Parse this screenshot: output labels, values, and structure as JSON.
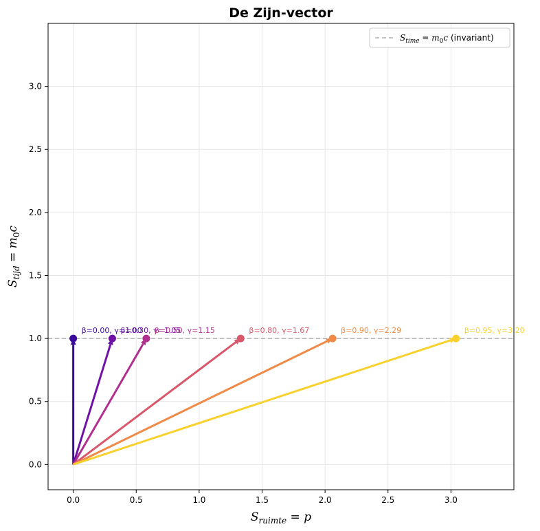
{
  "chart_data": {
    "type": "vector",
    "title": "De Zijn-vector",
    "xlabel": "S_ruimte = p",
    "ylabel": "S_tijd = m0c",
    "xlim": [
      -0.2,
      3.5
    ],
    "ylim": [
      -0.2,
      3.5
    ],
    "xticks": [
      0.0,
      0.5,
      1.0,
      1.5,
      2.0,
      2.5,
      3.0
    ],
    "yticks": [
      0.0,
      0.5,
      1.0,
      1.5,
      2.0,
      2.5,
      3.0
    ],
    "xtick_labels": [
      "0.0",
      "0.5",
      "1.0",
      "1.5",
      "2.0",
      "2.5",
      "3.0"
    ],
    "ytick_labels": [
      "0.0",
      "0.5",
      "1.0",
      "1.5",
      "2.0",
      "2.5",
      "3.0"
    ],
    "grid": true,
    "reference_line": {
      "y": 1.0,
      "label": "S_time = m0c (invariant)",
      "color": "#b0b0b0"
    },
    "legend": {
      "position": "top-right",
      "entries": [
        "S_time = m0c (invariant)"
      ]
    },
    "series": [
      {
        "label": "β=0.00, γ=1.00",
        "x": 0.0,
        "y": 1.0,
        "color": "#3b0a9c"
      },
      {
        "label": "β=0.30, γ=1.05",
        "x": 0.31,
        "y": 1.0,
        "color": "#7012a6"
      },
      {
        "label": "β=0.50, γ=1.15",
        "x": 0.58,
        "y": 1.0,
        "color": "#b12f8f"
      },
      {
        "label": "β=0.80, γ=1.67",
        "x": 1.33,
        "y": 1.0,
        "color": "#d9576a"
      },
      {
        "label": "β=0.90, γ=2.29",
        "x": 2.06,
        "y": 1.0,
        "color": "#f08a47"
      },
      {
        "label": "β=0.95, γ=3.20",
        "x": 3.04,
        "y": 1.0,
        "color": "#f9d12f"
      }
    ]
  }
}
